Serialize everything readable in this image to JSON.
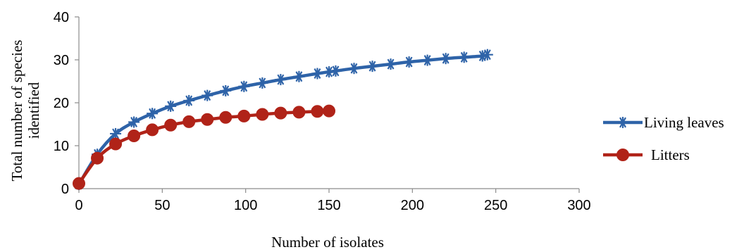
{
  "chart_data": {
    "type": "line",
    "title": "",
    "xlabel": "Number of isolates",
    "ylabel_line1": "Total number of species",
    "ylabel_line2": "identified",
    "xlim": [
      0,
      300
    ],
    "ylim": [
      0,
      40
    ],
    "xticks": [
      0,
      50,
      100,
      150,
      200,
      250,
      300
    ],
    "yticks": [
      0,
      10,
      20,
      30,
      40
    ],
    "grid": false,
    "legend_position": "right",
    "series": [
      {
        "name": "Living leaves",
        "color": "#2E63A8",
        "marker": "asterisk",
        "x": [
          0,
          11,
          22,
          33,
          44,
          55,
          66,
          77,
          88,
          99,
          110,
          121,
          132,
          143,
          150,
          154,
          165,
          176,
          187,
          198,
          209,
          220,
          231,
          242,
          245
        ],
        "y": [
          1,
          8,
          12.8,
          15.5,
          17.5,
          19.2,
          20.5,
          21.7,
          22.8,
          23.8,
          24.6,
          25.4,
          26.1,
          26.8,
          27.2,
          27.4,
          28.0,
          28.5,
          29.0,
          29.5,
          29.9,
          30.3,
          30.6,
          30.9,
          31.2
        ]
      },
      {
        "name": "Litters",
        "color": "#B02318",
        "marker": "circle",
        "x": [
          0,
          11,
          22,
          33,
          44,
          55,
          66,
          77,
          88,
          99,
          110,
          121,
          132,
          143,
          150
        ],
        "y": [
          1.2,
          7.1,
          10.4,
          12.3,
          13.7,
          14.8,
          15.6,
          16.1,
          16.6,
          16.9,
          17.3,
          17.6,
          17.8,
          18.0,
          18.1
        ]
      }
    ]
  }
}
